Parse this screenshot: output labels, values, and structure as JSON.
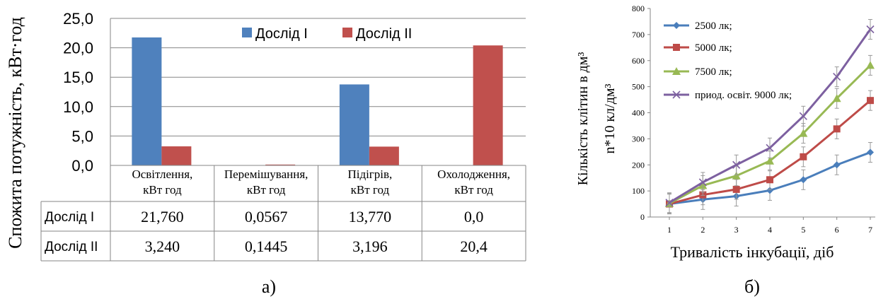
{
  "chart_data": [
    {
      "type": "bar",
      "ylabel": "Спожита потужність, кВт·год",
      "ylim": [
        0,
        25
      ],
      "yticks": [
        "25,0",
        "20,0",
        "15,0",
        "10,0",
        "5,0",
        "0,0"
      ],
      "categories": [
        [
          "Освітлення,",
          "кВт год"
        ],
        [
          "Перемішування,",
          "кВт год"
        ],
        [
          "Підігрів,",
          "кВт год"
        ],
        [
          "Охолодження,",
          "кВт год"
        ]
      ],
      "series": [
        {
          "name": "Дослід I",
          "color": "#4f81bd",
          "values": [
            21.76,
            0.0567,
            13.77,
            0.0
          ],
          "table": [
            "21,760",
            "0,0567",
            "13,770",
            "0,0"
          ]
        },
        {
          "name": "Дослід II",
          "color": "#c0504d",
          "values": [
            3.24,
            0.1445,
            3.196,
            20.4
          ],
          "table": [
            "3,240",
            "0,1445",
            "3,196",
            "20,4"
          ]
        }
      ],
      "legend": "top-right",
      "grid": true,
      "caption": "а)"
    },
    {
      "type": "line",
      "ylabel_lines": [
        "Кількість клітин в дм³",
        "n*10  кл/дм³"
      ],
      "xlabel": "Тривалість інкубації, діб",
      "x": [
        1,
        2,
        3,
        4,
        5,
        6,
        7
      ],
      "ylim": [
        0,
        800
      ],
      "yticks": [
        0,
        100,
        200,
        300,
        400,
        500,
        600,
        700,
        800
      ],
      "series": [
        {
          "name": "2500 лк;",
          "color": "#4a7ebb",
          "marker": "diamond",
          "values": [
            50,
            67,
            80,
            102,
            143,
            200,
            248
          ]
        },
        {
          "name": "5000 лк;",
          "color": "#be4b48",
          "marker": "square",
          "values": [
            50,
            85,
            106,
            143,
            231,
            338,
            447
          ]
        },
        {
          "name": "7500 лк;",
          "color": "#98b954",
          "marker": "triangle",
          "values": [
            52,
            121,
            158,
            215,
            321,
            455,
            582
          ]
        },
        {
          "name": "приод. освіт. 9000 лк;",
          "color": "#7d60a0",
          "marker": "x",
          "values": [
            55,
            133,
            200,
            265,
            387,
            538,
            720
          ]
        }
      ],
      "legend": "top-left",
      "grid": false,
      "caption": "б)"
    }
  ]
}
